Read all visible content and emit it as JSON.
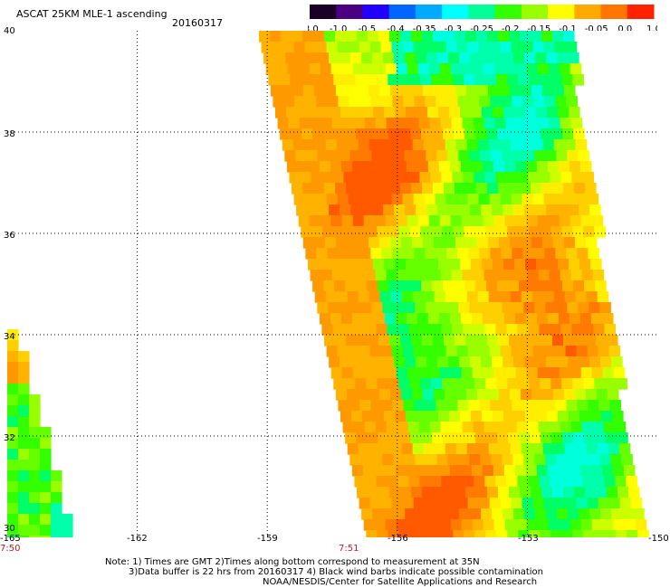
{
  "header": {
    "product": "ASCAT 25KM MLE-1 ascending",
    "date": "20160317"
  },
  "colorbar": {
    "labels": [
      "-3.0",
      "-1.0",
      "-0.5",
      "-0.4",
      "-0.35",
      "-0.3",
      "-0.25",
      "-0.2",
      "-0.15",
      "-0.1",
      "-0.05",
      "0.0",
      "1.0"
    ],
    "colors": [
      "#1a0026",
      "#4b0082",
      "#2200ff",
      "#0066ff",
      "#00aaff",
      "#00ffff",
      "#00ff99",
      "#33ff00",
      "#99ff00",
      "#ffff00",
      "#ffaa00",
      "#ff7700",
      "#ff2200"
    ]
  },
  "axes": {
    "x_ticks": [
      "-165",
      "-162",
      "-159",
      "-156",
      "-153",
      "-150"
    ],
    "y_ticks": [
      "40",
      "38",
      "36",
      "34",
      "32",
      "30"
    ],
    "x_range": [
      -165,
      -150
    ],
    "y_range": [
      30,
      40
    ]
  },
  "times": [
    "7:50",
    "7:51"
  ],
  "notes": [
    "Note: 1) Times are GMT 2)Times along bottom correspond to measurement at 35N",
    "3)Data buffer is 22 hrs from 20160317 4) Black wind barbs indicate possible contamination",
    "NOAA/NESDIS/Center for Satellite Applications and Research"
  ]
}
